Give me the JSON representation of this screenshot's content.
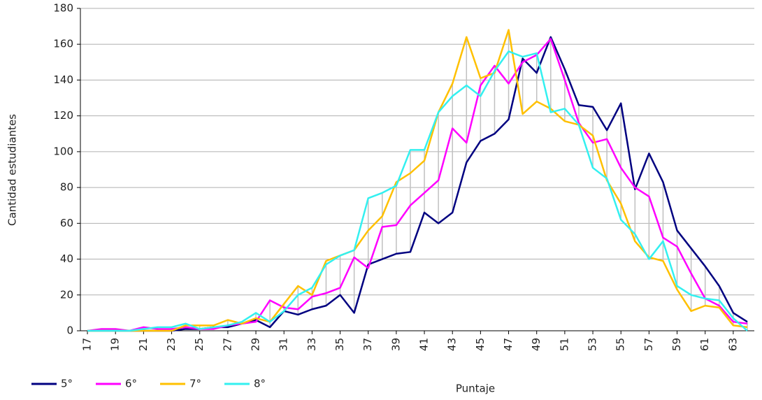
{
  "chart_data": {
    "type": "line",
    "xlabel": "Puntaje",
    "ylabel": "Cantidad estudiantes",
    "x": [
      17,
      18,
      19,
      20,
      21,
      22,
      23,
      24,
      25,
      26,
      27,
      28,
      29,
      30,
      31,
      32,
      33,
      34,
      35,
      36,
      37,
      38,
      39,
      40,
      41,
      42,
      43,
      44,
      45,
      46,
      47,
      48,
      49,
      50,
      51,
      52,
      53,
      54,
      55,
      56,
      57,
      58,
      59,
      60,
      61,
      62,
      63,
      64
    ],
    "xlim": [
      16.5,
      64.5
    ],
    "xticks": [
      17,
      19,
      21,
      23,
      25,
      27,
      29,
      31,
      33,
      35,
      37,
      39,
      41,
      43,
      45,
      47,
      49,
      51,
      53,
      55,
      57,
      59,
      61,
      63
    ],
    "ylim": [
      0,
      180
    ],
    "yticks": [
      0,
      20,
      40,
      60,
      80,
      100,
      120,
      140,
      160,
      180
    ],
    "grid": true,
    "series": [
      {
        "name": "5°",
        "color": "#000080",
        "values": [
          0,
          0,
          0,
          0,
          0,
          0,
          0,
          1,
          1,
          2,
          2,
          4,
          6,
          2,
          11,
          9,
          12,
          14,
          20,
          10,
          37,
          40,
          43,
          44,
          66,
          60,
          66,
          94,
          106,
          110,
          118,
          152,
          144,
          164,
          146,
          126,
          125,
          112,
          127,
          79,
          99,
          83,
          56,
          46,
          36,
          25,
          10,
          5
        ]
      },
      {
        "name": "6°",
        "color": "#ff00ff",
        "values": [
          0,
          1,
          1,
          0,
          2,
          1,
          1,
          2,
          1,
          1,
          3,
          4,
          5,
          17,
          13,
          12,
          19,
          21,
          24,
          41,
          35,
          58,
          59,
          70,
          77,
          84,
          113,
          105,
          137,
          148,
          138,
          150,
          154,
          163,
          140,
          116,
          105,
          107,
          91,
          80,
          75,
          52,
          47,
          32,
          18,
          14,
          5,
          4
        ]
      },
      {
        "name": "7°",
        "color": "#ffc000",
        "values": [
          0,
          0,
          0,
          0,
          0,
          0,
          0,
          3,
          3,
          3,
          6,
          4,
          7,
          5,
          15,
          25,
          20,
          39,
          42,
          45,
          56,
          64,
          83,
          88,
          95,
          122,
          138,
          164,
          141,
          144,
          168,
          121,
          128,
          124,
          117,
          115,
          109,
          84,
          71,
          50,
          41,
          39,
          23,
          11,
          14,
          13,
          3,
          2
        ]
      },
      {
        "name": "8°",
        "color": "#33f0f0",
        "values": [
          0,
          0,
          0,
          0,
          1,
          2,
          2,
          4,
          1,
          2,
          3,
          5,
          10,
          5,
          11,
          20,
          24,
          37,
          42,
          45,
          74,
          77,
          81,
          101,
          101,
          122,
          131,
          137,
          131,
          145,
          156,
          153,
          155,
          122,
          124,
          115,
          91,
          85,
          62,
          54,
          40,
          50,
          25,
          20,
          18,
          17,
          7,
          0
        ]
      }
    ]
  }
}
